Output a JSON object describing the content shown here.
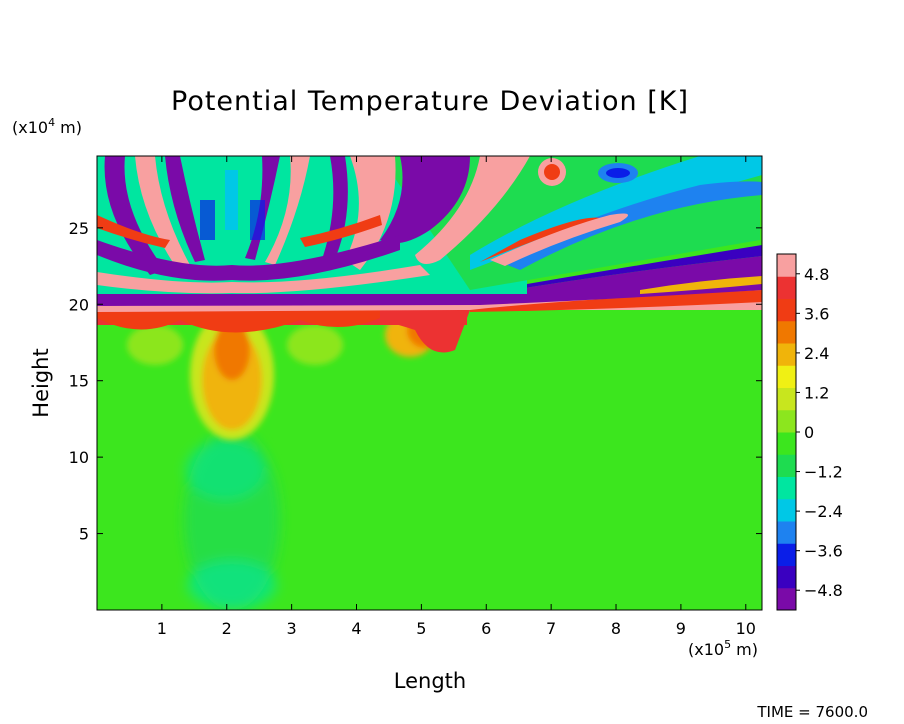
{
  "chart_data": {
    "type": "heatmap",
    "title": "Potential Temperature Deviation [K]",
    "xlabel": "Length",
    "ylabel": "Height",
    "x_unit_label": "(x10",
    "x_unit_exp": "5",
    "x_unit_tail": " m)",
    "y_unit_label": "(x10",
    "y_unit_exp": "4",
    "y_unit_tail": " m)",
    "x_ticks": [
      1,
      2,
      3,
      4,
      5,
      6,
      7,
      8,
      9,
      10
    ],
    "y_ticks": [
      5,
      10,
      15,
      20,
      25
    ],
    "xlim": [
      0,
      10.25
    ],
    "ylim": [
      0,
      29.7
    ],
    "colorbar": {
      "tick_labels": [
        "4.8",
        "3.6",
        "2.4",
        "1.2",
        "0",
        "−1.2",
        "−2.4",
        "−3.6",
        "−4.8"
      ],
      "tick_values": [
        4.8,
        3.6,
        2.4,
        1.2,
        0,
        -1.2,
        -2.4,
        -3.6,
        -4.8
      ],
      "range": [
        -5.4,
        5.4
      ],
      "colors": [
        "#7a0aa8",
        "#3a00c0",
        "#0a1ee8",
        "#1e82f0",
        "#00c8e6",
        "#00e6a0",
        "#1edc50",
        "#3ce61e",
        "#8ce61e",
        "#c8e61e",
        "#f0f014",
        "#f0b40a",
        "#f07800",
        "#f03c14",
        "#ec3232",
        "#f8a0a0"
      ]
    },
    "footer": "TIME = 7600.0"
  }
}
